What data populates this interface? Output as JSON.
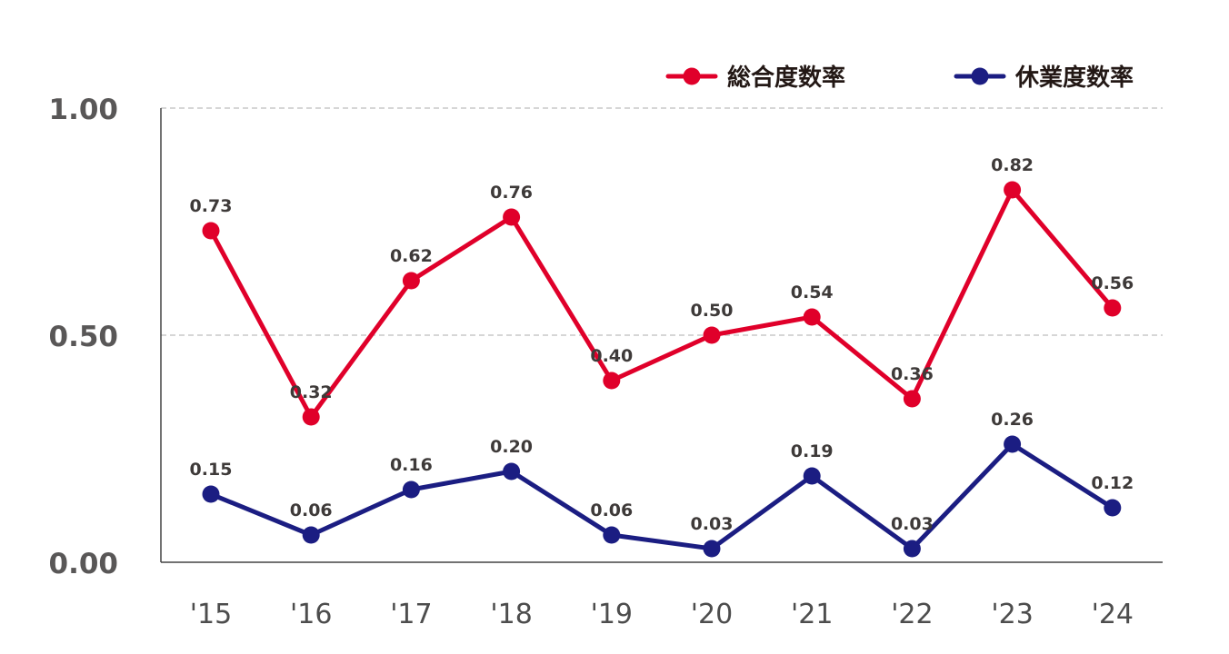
{
  "chart_data": {
    "type": "line",
    "categories": [
      "'15",
      "'16",
      "'17",
      "'18",
      "'19",
      "'20",
      "'21",
      "'22",
      "'23",
      "'24"
    ],
    "series": [
      {
        "name": "総合度数率",
        "color": "#e0002a",
        "values": [
          0.73,
          0.32,
          0.62,
          0.76,
          0.4,
          0.5,
          0.54,
          0.36,
          0.82,
          0.56
        ],
        "labels": [
          "0.73",
          "0.32",
          "0.62",
          "0.76",
          "0.40",
          "0.50",
          "0.54",
          "0.36",
          "0.82",
          "0.56"
        ]
      },
      {
        "name": "休業度数率",
        "color": "#1b1d82",
        "values": [
          0.15,
          0.06,
          0.16,
          0.2,
          0.06,
          0.03,
          0.19,
          0.03,
          0.26,
          0.12
        ],
        "labels": [
          "0.15",
          "0.06",
          "0.16",
          "0.20",
          "0.06",
          "0.03",
          "0.19",
          "0.03",
          "0.26",
          "0.12"
        ]
      }
    ],
    "yticks": [
      {
        "value": 0,
        "label": "0.00"
      },
      {
        "value": 0.5,
        "label": "0.50"
      },
      {
        "value": 1,
        "label": "1.00"
      }
    ],
    "ylim": [
      0,
      1
    ],
    "grid": "horizontal dashed",
    "legend_position": "top-right"
  }
}
